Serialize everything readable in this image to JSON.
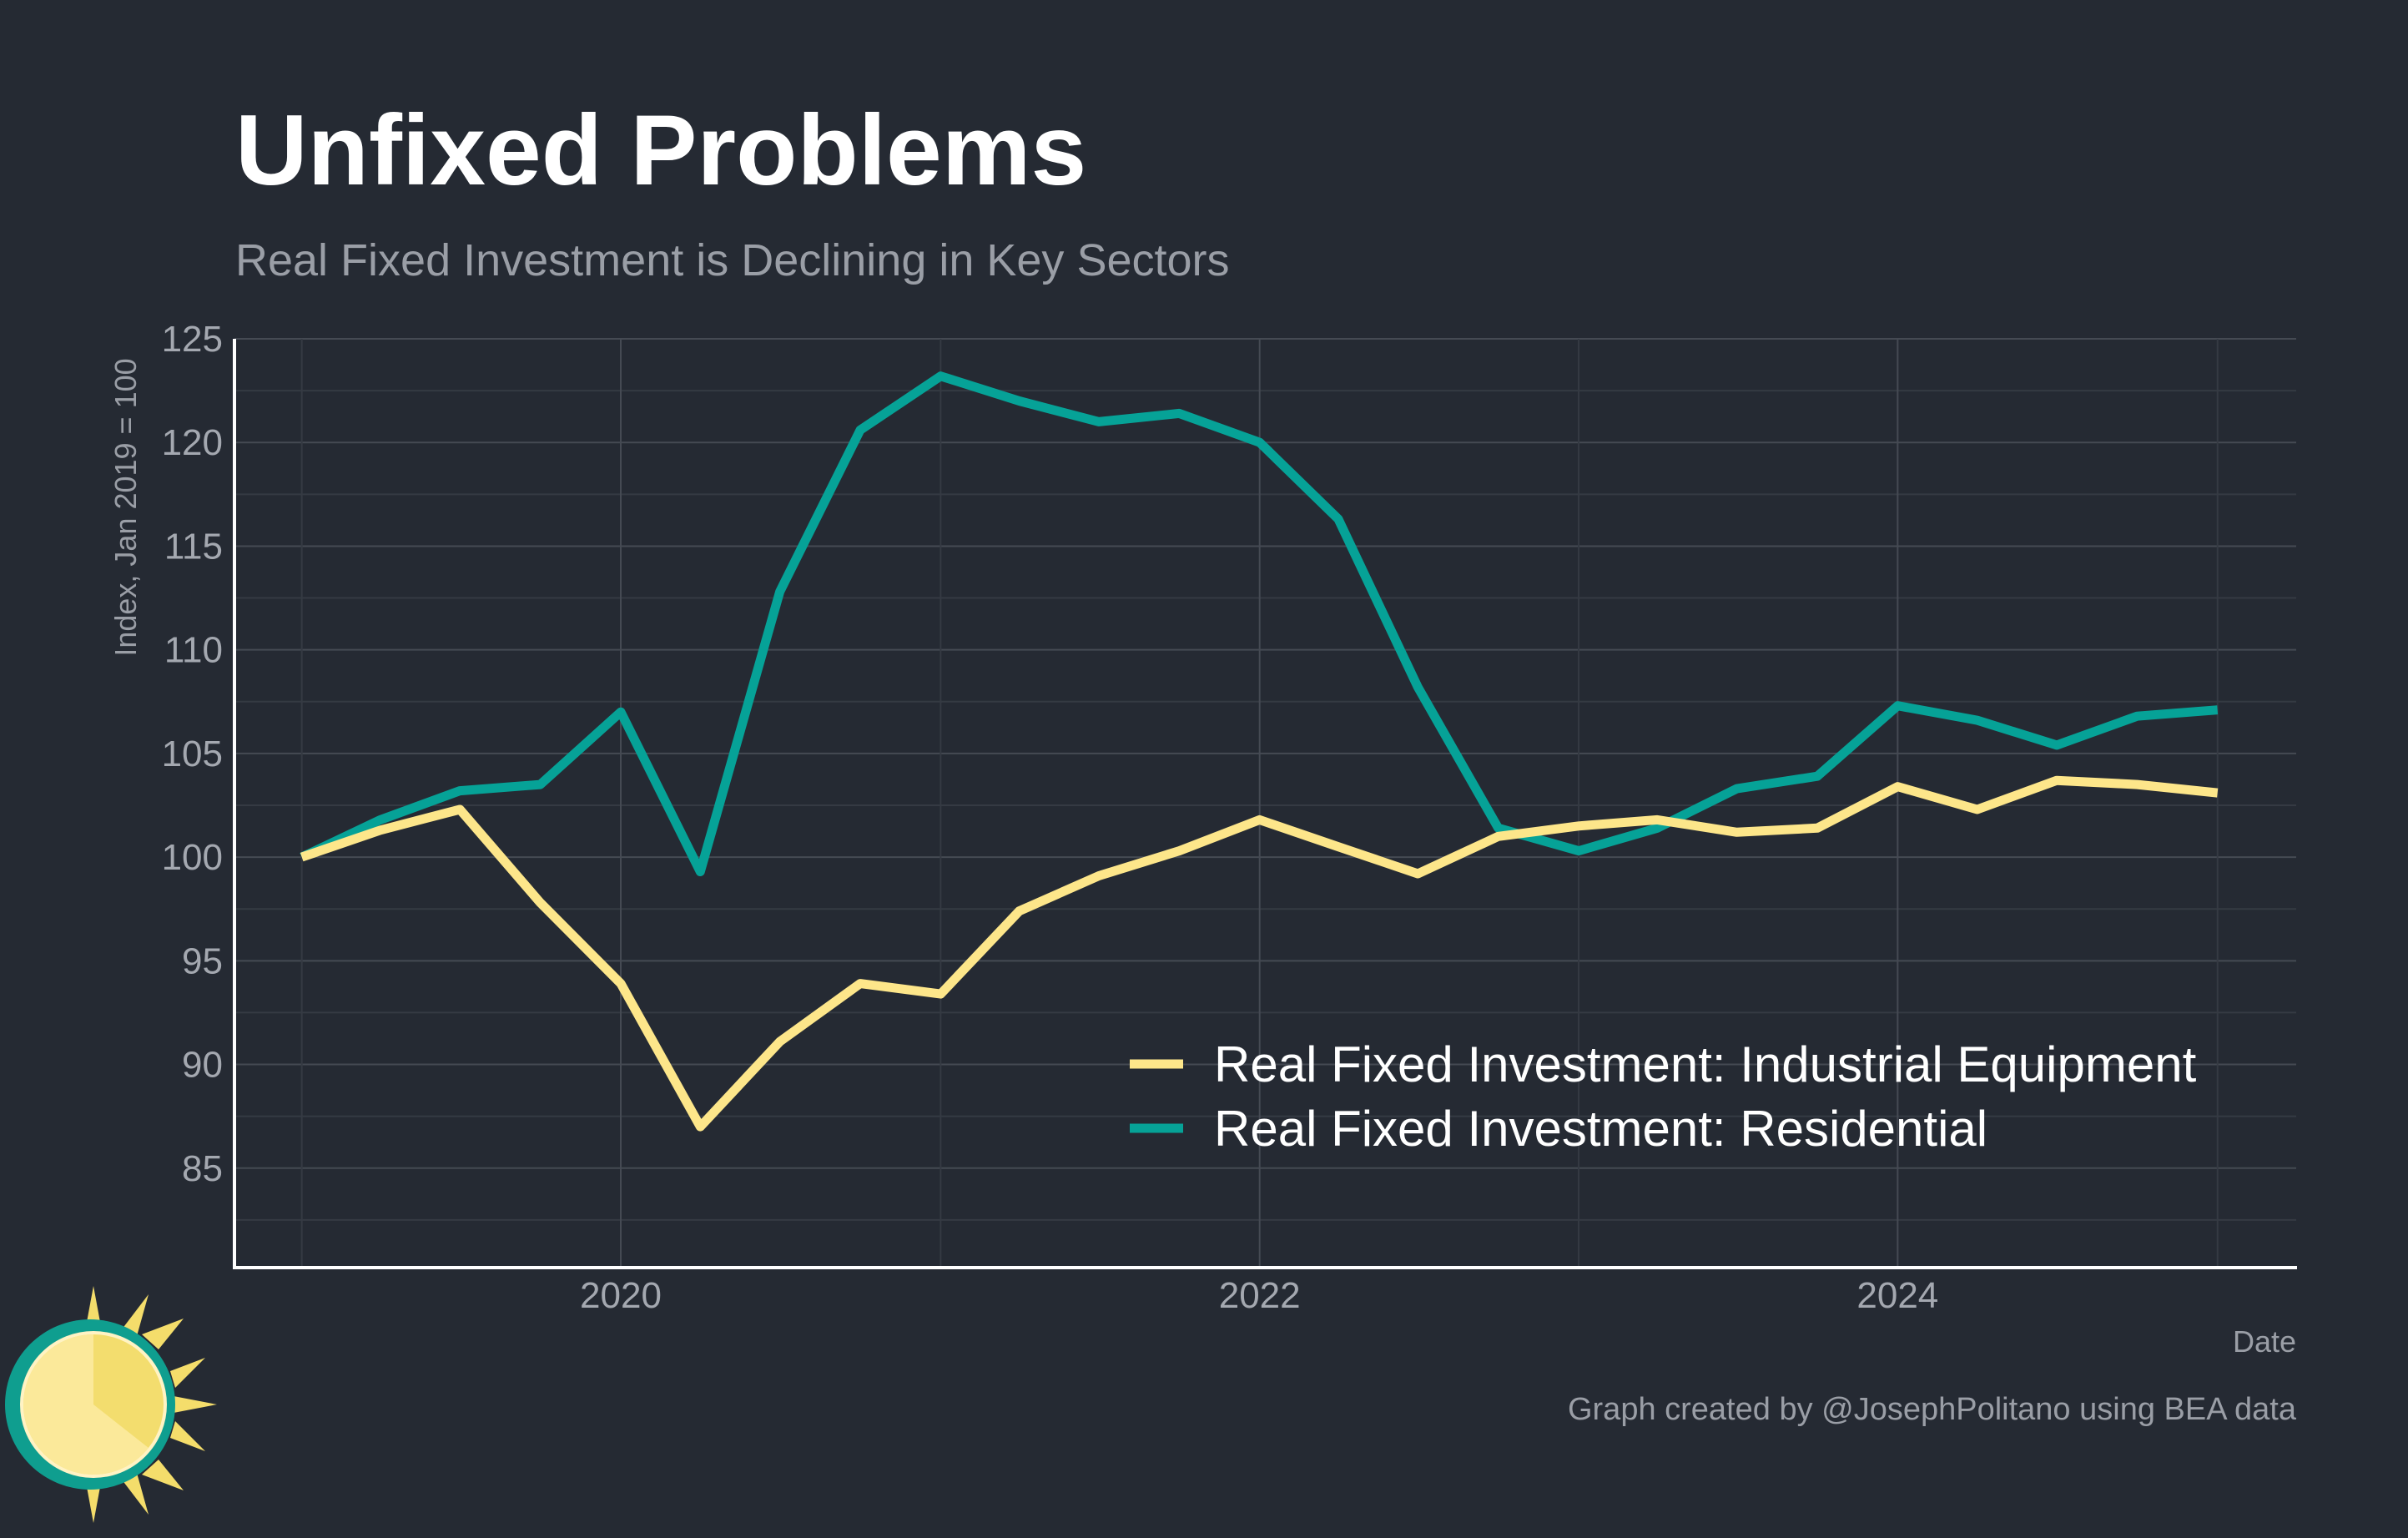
{
  "colors": {
    "background": "#252a33",
    "grid_major": "#454a53",
    "grid_minor": "#353a43",
    "axis": "#ffffff",
    "title": "#ffffff",
    "subtitle": "#9a9ea6",
    "tick": "#a4a8b0",
    "legend_text": "#ffffff",
    "caption": "#9a9ea6"
  },
  "header": {
    "title": "Unfixed Problems",
    "subtitle": "Real Fixed Investment is Declining in Key Sectors"
  },
  "footer": {
    "caption": "Graph created by @JosephPolitano using BEA data"
  },
  "logo": {
    "icon": "sun-logo-icon"
  },
  "chart_data": {
    "type": "line",
    "title": "Unfixed Problems",
    "subtitle": "Real Fixed Investment is Declining in Key Sectors",
    "xlabel": "Date",
    "ylabel": "Index, Jan 2019 = 100",
    "x_tick_labels": [
      "2020",
      "2022",
      "2024"
    ],
    "y_tick_labels": [
      "85",
      "90",
      "95",
      "100",
      "105",
      "110",
      "115",
      "120",
      "125"
    ],
    "xlim": [
      "2018-10-16",
      "2025-04-01"
    ],
    "ylim": [
      80.2,
      125
    ],
    "grid": true,
    "legend_position": "bottom-right",
    "x": [
      "2019-01-01",
      "2019-04-01",
      "2019-07-01",
      "2019-10-01",
      "2020-01-01",
      "2020-04-01",
      "2020-07-01",
      "2020-10-01",
      "2021-01-01",
      "2021-04-01",
      "2021-07-01",
      "2021-10-01",
      "2022-01-01",
      "2022-04-01",
      "2022-07-01",
      "2022-10-01",
      "2023-01-01",
      "2023-04-01",
      "2023-07-01",
      "2023-10-01",
      "2024-01-01",
      "2024-04-01",
      "2024-07-01",
      "2024-10-01",
      "2025-01-01"
    ],
    "series": [
      {
        "name": "Real Fixed Investment: Industrial Equipment",
        "color": "#fde68a",
        "values": [
          100,
          101.3,
          102.3,
          97.8,
          93.9,
          87,
          91.1,
          93.9,
          93.4,
          97.4,
          99.1,
          100.3,
          101.8,
          100.5,
          99.2,
          101,
          101.5,
          101.8,
          101.2,
          101.4,
          103.4,
          102.3,
          103.7,
          103.5,
          103.1
        ]
      },
      {
        "name": "Real Fixed Investment: Residential",
        "color": "#06a297",
        "values": [
          100,
          101.8,
          103.2,
          103.5,
          107,
          99.3,
          112.8,
          120.6,
          123.2,
          122,
          121,
          121.4,
          120,
          116.3,
          108.2,
          101.4,
          100.3,
          101.4,
          103.3,
          103.9,
          107.3,
          106.6,
          105.4,
          106.8,
          107.1
        ]
      }
    ]
  }
}
